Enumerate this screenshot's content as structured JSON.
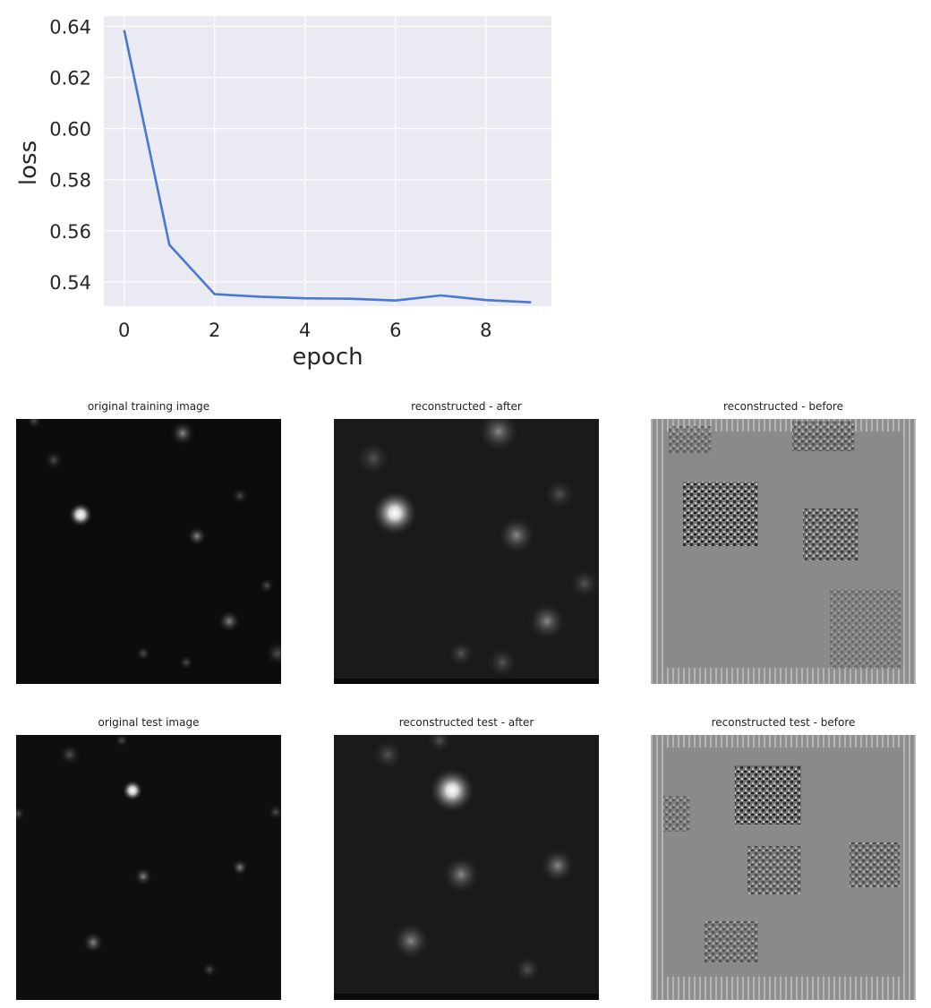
{
  "chart_data": {
    "type": "line",
    "title": "",
    "xlabel": "epoch",
    "ylabel": "loss",
    "x": [
      0,
      1,
      2,
      3,
      4,
      5,
      6,
      7,
      8,
      9
    ],
    "series": [
      {
        "values": [
          0.6385,
          0.5545,
          0.5352,
          0.5342,
          0.5336,
          0.5334,
          0.5327,
          0.5347,
          0.5329,
          0.532
        ]
      }
    ],
    "xlim": [
      -0.45,
      9.45
    ],
    "ylim": [
      0.5305,
      0.644
    ],
    "xticks": [
      0,
      2,
      4,
      6,
      8
    ],
    "yticks": [
      0.54,
      0.56,
      0.58,
      0.6,
      0.62,
      0.64
    ],
    "xtick_labels": [
      "0",
      "2",
      "4",
      "6",
      "8"
    ],
    "ytick_labels": [
      "0.54",
      "0.56",
      "0.58",
      "0.60",
      "0.62",
      "0.64"
    ],
    "grid": true,
    "colors": {
      "line": "#4878d0",
      "plot_bg": "#eaeaf2",
      "grid": "#ffffff"
    }
  },
  "images": [
    {
      "title": "original training image"
    },
    {
      "title": "reconstructed - after"
    },
    {
      "title": "reconstructed - before"
    },
    {
      "title": "original test image"
    },
    {
      "title": "reconstructed test - after"
    },
    {
      "title": "reconstructed test - before"
    }
  ]
}
